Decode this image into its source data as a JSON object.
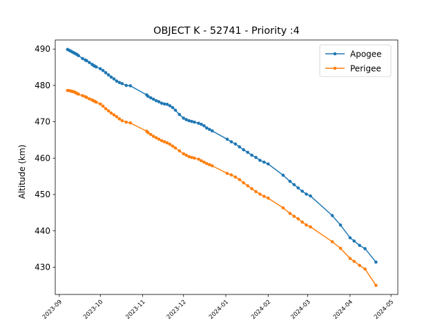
{
  "chart_data": {
    "type": "line",
    "title": "OBJECT K - 52741 - Priority :4",
    "xlabel": "",
    "ylabel": "Altitude (km)",
    "xlim": [
      "2023-08-29",
      "2024-05-06"
    ],
    "ylim": [
      422.5,
      492.5
    ],
    "x_ticks": [
      "2023-09",
      "2023-10",
      "2023-11",
      "2023-12",
      "2024-01",
      "2024-02",
      "2024-03",
      "2024-04",
      "2024-05"
    ],
    "y_ticks": [
      430,
      440,
      450,
      460,
      470,
      480,
      490
    ],
    "grid": false,
    "legend_position": "top-right",
    "series": [
      {
        "name": "Apogee",
        "color": "#1f77b4",
        "points": [
          [
            "2023-09-07",
            489.9
          ],
          [
            "2023-09-08",
            489.7
          ],
          [
            "2023-09-09",
            489.5
          ],
          [
            "2023-09-10",
            489.3
          ],
          [
            "2023-09-11",
            489.1
          ],
          [
            "2023-09-12",
            488.9
          ],
          [
            "2023-09-13",
            488.7
          ],
          [
            "2023-09-14",
            488.5
          ],
          [
            "2023-09-15",
            488.2
          ],
          [
            "2023-09-18",
            487.4
          ],
          [
            "2023-09-20",
            487.0
          ],
          [
            "2023-09-21",
            486.8
          ],
          [
            "2023-09-23",
            486.3
          ],
          [
            "2023-09-25",
            485.8
          ],
          [
            "2023-09-26",
            485.5
          ],
          [
            "2023-09-27",
            485.3
          ],
          [
            "2023-09-28",
            485.1
          ],
          [
            "2023-10-01",
            484.6
          ],
          [
            "2023-10-03",
            484.1
          ],
          [
            "2023-10-05",
            483.5
          ],
          [
            "2023-10-07",
            482.9
          ],
          [
            "2023-10-09",
            482.3
          ],
          [
            "2023-10-11",
            481.8
          ],
          [
            "2023-10-13",
            481.2
          ],
          [
            "2023-10-15",
            480.8
          ],
          [
            "2023-10-17",
            480.5
          ],
          [
            "2023-10-20",
            480.0
          ],
          [
            "2023-10-23",
            479.9
          ],
          [
            "2023-11-04",
            477.4
          ],
          [
            "2023-11-05",
            477.0
          ],
          [
            "2023-11-07",
            476.6
          ],
          [
            "2023-11-09",
            476.2
          ],
          [
            "2023-11-11",
            475.8
          ],
          [
            "2023-11-13",
            475.5
          ],
          [
            "2023-11-15",
            475.1
          ],
          [
            "2023-11-17",
            474.9
          ],
          [
            "2023-11-19",
            474.8
          ],
          [
            "2023-11-21",
            474.4
          ],
          [
            "2023-11-23",
            473.9
          ],
          [
            "2023-11-25",
            473.2
          ],
          [
            "2023-11-28",
            472.0
          ],
          [
            "2023-12-01",
            471.0
          ],
          [
            "2023-12-03",
            470.6
          ],
          [
            "2023-12-05",
            470.3
          ],
          [
            "2023-12-07",
            470.1
          ],
          [
            "2023-12-09",
            469.9
          ],
          [
            "2023-12-12",
            469.6
          ],
          [
            "2023-12-14",
            469.3
          ],
          [
            "2023-12-16",
            468.9
          ],
          [
            "2023-12-18",
            468.3
          ],
          [
            "2023-12-20",
            467.9
          ],
          [
            "2023-12-22",
            467.5
          ],
          [
            "2024-01-02",
            465.2
          ],
          [
            "2024-01-05",
            464.5
          ],
          [
            "2024-01-08",
            463.9
          ],
          [
            "2024-01-11",
            463.1
          ],
          [
            "2024-01-14",
            462.3
          ],
          [
            "2024-01-17",
            461.6
          ],
          [
            "2024-01-20",
            460.8
          ],
          [
            "2024-01-23",
            460.2
          ],
          [
            "2024-01-26",
            459.4
          ],
          [
            "2024-01-29",
            458.9
          ],
          [
            "2024-02-01",
            458.4
          ],
          [
            "2024-02-12",
            455.3
          ],
          [
            "2024-02-17",
            453.6
          ],
          [
            "2024-02-20",
            452.7
          ],
          [
            "2024-02-23",
            451.8
          ],
          [
            "2024-02-26",
            450.9
          ],
          [
            "2024-02-29",
            450.1
          ],
          [
            "2024-03-03",
            449.6
          ],
          [
            "2024-03-19",
            444.2
          ],
          [
            "2024-03-25",
            441.6
          ],
          [
            "2024-04-01",
            438.1
          ],
          [
            "2024-04-04",
            437.2
          ],
          [
            "2024-04-08",
            436.0
          ],
          [
            "2024-04-12",
            435.1
          ],
          [
            "2024-04-20",
            431.4
          ]
        ]
      },
      {
        "name": "Perigee",
        "color": "#ff7f0e",
        "points": [
          [
            "2023-09-07",
            478.6
          ],
          [
            "2023-09-08",
            478.6
          ],
          [
            "2023-09-09",
            478.5
          ],
          [
            "2023-09-10",
            478.4
          ],
          [
            "2023-09-11",
            478.3
          ],
          [
            "2023-09-12",
            478.2
          ],
          [
            "2023-09-13",
            478.0
          ],
          [
            "2023-09-14",
            477.8
          ],
          [
            "2023-09-15",
            477.6
          ],
          [
            "2023-09-18",
            477.2
          ],
          [
            "2023-09-20",
            476.9
          ],
          [
            "2023-09-21",
            476.7
          ],
          [
            "2023-09-23",
            476.3
          ],
          [
            "2023-09-25",
            476.0
          ],
          [
            "2023-09-26",
            475.8
          ],
          [
            "2023-09-27",
            475.6
          ],
          [
            "2023-09-28",
            475.4
          ],
          [
            "2023-10-01",
            474.9
          ],
          [
            "2023-10-03",
            474.3
          ],
          [
            "2023-10-05",
            473.6
          ],
          [
            "2023-10-07",
            473.0
          ],
          [
            "2023-10-09",
            472.4
          ],
          [
            "2023-10-11",
            471.9
          ],
          [
            "2023-10-13",
            471.4
          ],
          [
            "2023-10-15",
            470.8
          ],
          [
            "2023-10-17",
            470.3
          ],
          [
            "2023-10-20",
            469.9
          ],
          [
            "2023-10-23",
            469.7
          ],
          [
            "2023-11-04",
            467.4
          ],
          [
            "2023-11-05",
            467.0
          ],
          [
            "2023-11-07",
            466.5
          ],
          [
            "2023-11-09",
            466.0
          ],
          [
            "2023-11-11",
            465.6
          ],
          [
            "2023-11-13",
            465.2
          ],
          [
            "2023-11-15",
            464.8
          ],
          [
            "2023-11-17",
            464.5
          ],
          [
            "2023-11-19",
            464.2
          ],
          [
            "2023-11-21",
            463.8
          ],
          [
            "2023-11-23",
            463.3
          ],
          [
            "2023-11-25",
            462.8
          ],
          [
            "2023-11-28",
            462.0
          ],
          [
            "2023-12-01",
            461.2
          ],
          [
            "2023-12-03",
            460.8
          ],
          [
            "2023-12-05",
            460.4
          ],
          [
            "2023-12-07",
            460.2
          ],
          [
            "2023-12-09",
            460.0
          ],
          [
            "2023-12-12",
            459.7
          ],
          [
            "2023-12-14",
            459.3
          ],
          [
            "2023-12-16",
            458.9
          ],
          [
            "2023-12-18",
            458.5
          ],
          [
            "2023-12-20",
            458.2
          ],
          [
            "2023-12-22",
            457.9
          ],
          [
            "2024-01-02",
            455.8
          ],
          [
            "2024-01-05",
            455.4
          ],
          [
            "2024-01-08",
            454.8
          ],
          [
            "2024-01-11",
            454.1
          ],
          [
            "2024-01-14",
            453.2
          ],
          [
            "2024-01-17",
            452.4
          ],
          [
            "2024-01-20",
            451.6
          ],
          [
            "2024-01-23",
            450.8
          ],
          [
            "2024-01-26",
            450.1
          ],
          [
            "2024-01-29",
            449.5
          ],
          [
            "2024-02-01",
            449.0
          ],
          [
            "2024-02-12",
            446.3
          ],
          [
            "2024-02-17",
            444.8
          ],
          [
            "2024-02-20",
            444.0
          ],
          [
            "2024-02-23",
            443.3
          ],
          [
            "2024-02-26",
            442.4
          ],
          [
            "2024-02-29",
            441.6
          ],
          [
            "2024-03-03",
            441.1
          ],
          [
            "2024-03-19",
            437.0
          ],
          [
            "2024-03-25",
            435.2
          ],
          [
            "2024-04-01",
            432.4
          ],
          [
            "2024-04-04",
            431.6
          ],
          [
            "2024-04-08",
            430.5
          ],
          [
            "2024-04-12",
            429.5
          ],
          [
            "2024-04-20",
            425.0
          ]
        ]
      }
    ]
  }
}
